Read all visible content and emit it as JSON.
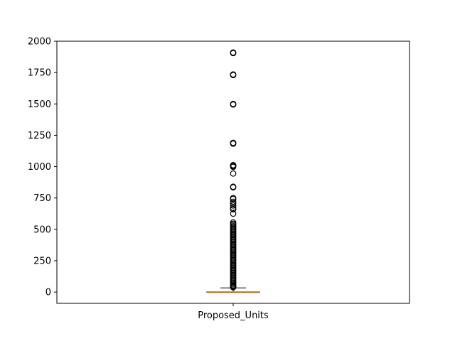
{
  "chart_data": {
    "type": "boxplot",
    "title": "",
    "xlabel": "",
    "ylabel": "",
    "categories": [
      "Proposed_Units"
    ],
    "ylim": [
      -90,
      2000
    ],
    "yticks": [
      0,
      250,
      500,
      750,
      1000,
      1250,
      1500,
      1750,
      2000
    ],
    "grid": false,
    "box": {
      "q1": 0,
      "median": 1,
      "q3": 2,
      "whisker_low": 0,
      "whisker_high": 33
    },
    "outliers": [
      1910,
      1905,
      1735,
      1730,
      1500,
      1495,
      1190,
      1183,
      1012,
      1005,
      998,
      945,
      840,
      835,
      750,
      742,
      720,
      705,
      690,
      672,
      660,
      625,
      555,
      545,
      535,
      525,
      515,
      505,
      495,
      485,
      475,
      465,
      455,
      445,
      435,
      425,
      415,
      405,
      395,
      385,
      375,
      365,
      355,
      345,
      335,
      325,
      315,
      305,
      295,
      285,
      275,
      265,
      255,
      245,
      235,
      225,
      215,
      205,
      195,
      185,
      175,
      165,
      155,
      145,
      135,
      125,
      115,
      105,
      95,
      85,
      75,
      65,
      55,
      48,
      42,
      38
    ],
    "colors": {
      "median": "#ff7f0e",
      "box": "#000000",
      "flier": "#000000"
    }
  }
}
